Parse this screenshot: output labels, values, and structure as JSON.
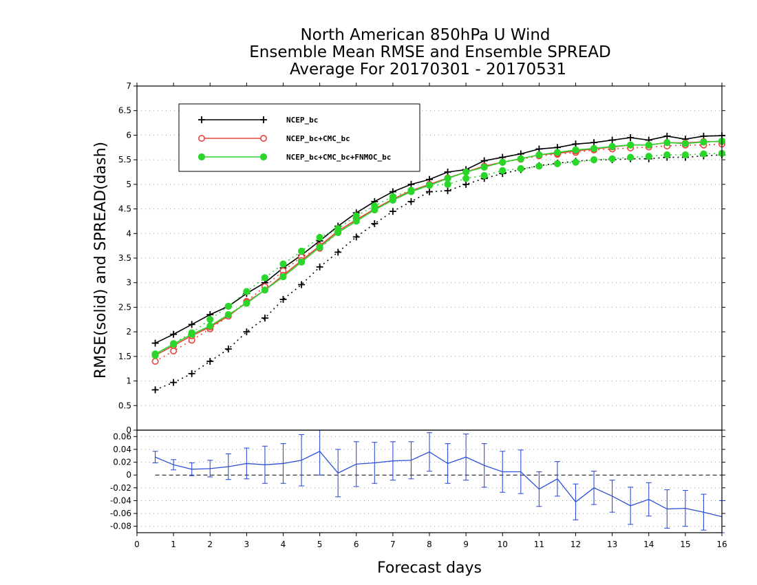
{
  "chart_data": [
    {
      "type": "line",
      "title": [
        "North American 850hPa U Wind",
        "Ensemble Mean RMSE and Ensemble SPREAD",
        "Average For 20170301 - 20170531"
      ],
      "ylabel": "RMSE(solid) and SPREAD(dash)",
      "xlim": [
        0,
        16
      ],
      "ylim": [
        0,
        7
      ],
      "yticks": [
        0,
        0.5,
        1,
        1.5,
        2,
        2.5,
        3,
        3.5,
        4,
        4.5,
        5,
        5.5,
        6,
        6.5,
        7
      ],
      "ytick_labels": [
        "0",
        "0.5",
        "1",
        "1.5",
        "2",
        "2.5",
        "3",
        "3.5",
        "4",
        "4.5",
        "5",
        "5.5",
        "6",
        "6.5",
        "7"
      ],
      "grid": true,
      "legend_position": "top-left",
      "x": [
        0.5,
        1,
        1.5,
        2,
        2.5,
        3,
        3.5,
        4,
        4.5,
        5,
        5.5,
        6,
        6.5,
        7,
        7.5,
        8,
        8.5,
        9,
        9.5,
        10,
        10.5,
        11,
        11.5,
        12,
        12.5,
        13,
        13.5,
        14,
        14.5,
        15,
        15.5,
        16
      ],
      "series": [
        {
          "name": "NCEP_bc",
          "color": "#000000",
          "marker": "plus",
          "rmse": [
            1.77,
            1.95,
            2.15,
            2.35,
            2.52,
            2.78,
            3.0,
            3.3,
            3.56,
            3.85,
            4.15,
            4.42,
            4.65,
            4.85,
            5.0,
            5.1,
            5.25,
            5.3,
            5.48,
            5.55,
            5.62,
            5.72,
            5.75,
            5.82,
            5.85,
            5.9,
            5.95,
            5.9,
            5.98,
            5.92,
            5.98,
            5.99
          ],
          "spread": [
            0.82,
            0.97,
            1.15,
            1.4,
            1.65,
            2.0,
            2.28,
            2.66,
            2.96,
            3.32,
            3.62,
            3.93,
            4.2,
            4.45,
            4.65,
            4.85,
            4.87,
            5.0,
            5.12,
            5.22,
            5.3,
            5.38,
            5.43,
            5.47,
            5.5,
            5.5,
            5.52,
            5.52,
            5.55,
            5.55,
            5.58,
            5.6
          ]
        },
        {
          "name": "NCEP_bc+CMC_bc",
          "color": "#e8423a",
          "marker": "open-circle",
          "rmse": [
            1.52,
            1.72,
            1.92,
            2.1,
            2.32,
            2.6,
            2.85,
            3.15,
            3.45,
            3.75,
            4.05,
            4.28,
            4.5,
            4.7,
            4.87,
            5.0,
            5.13,
            5.25,
            5.37,
            5.45,
            5.52,
            5.6,
            5.63,
            5.68,
            5.72,
            5.76,
            5.8,
            5.8,
            5.85,
            5.84,
            5.87,
            5.87
          ],
          "spread": [
            1.4,
            1.61,
            1.83,
            2.06,
            2.32,
            2.62,
            2.92,
            3.24,
            3.52,
            3.7,
            4.02,
            4.26,
            4.48,
            4.68,
            4.86,
            5.0,
            5.12,
            5.25,
            5.36,
            5.45,
            5.51,
            5.58,
            5.61,
            5.65,
            5.7,
            5.72,
            5.74,
            5.76,
            5.78,
            5.8,
            5.8,
            5.82
          ]
        },
        {
          "name": "NCEP_bc+CMC_bc+FNMOC_bc",
          "color": "#2bd62b",
          "marker": "filled-circle",
          "rmse": [
            1.55,
            1.75,
            1.95,
            2.12,
            2.35,
            2.58,
            2.85,
            3.12,
            3.42,
            3.72,
            4.02,
            4.25,
            4.48,
            4.68,
            4.85,
            4.98,
            5.12,
            5.25,
            5.35,
            5.45,
            5.52,
            5.6,
            5.65,
            5.7,
            5.73,
            5.77,
            5.8,
            5.8,
            5.85,
            5.83,
            5.86,
            5.88
          ],
          "spread": [
            1.52,
            1.76,
            1.98,
            2.25,
            2.52,
            2.82,
            3.1,
            3.38,
            3.64,
            3.92,
            4.1,
            4.36,
            4.56,
            4.75,
            4.88,
            4.98,
            5.0,
            5.12,
            5.18,
            5.28,
            5.32,
            5.37,
            5.42,
            5.45,
            5.5,
            5.52,
            5.55,
            5.57,
            5.6,
            5.6,
            5.62,
            5.63
          ]
        }
      ]
    },
    {
      "type": "line-errorbar",
      "xlabel": "Forecast days",
      "xlim": [
        0,
        16
      ],
      "ylim": [
        -0.09,
        0.07
      ],
      "xticks": [
        0,
        1,
        2,
        3,
        4,
        5,
        6,
        7,
        8,
        9,
        10,
        11,
        12,
        13,
        14,
        15,
        16
      ],
      "xtick_labels": [
        "0",
        "1",
        "2",
        "3",
        "4",
        "5",
        "6",
        "7",
        "8",
        "9",
        "10",
        "11",
        "12",
        "13",
        "14",
        "15",
        "16"
      ],
      "yticks": [
        -0.08,
        -0.06,
        -0.04,
        -0.02,
        0,
        0.02,
        0.04,
        0.06
      ],
      "ytick_labels": [
        "-0.08",
        "-0.06",
        "-0.04",
        "-0.02",
        "0",
        "0.02",
        "0.04",
        "0.06"
      ],
      "grid": true,
      "series": [
        {
          "color": "#3050d8",
          "x": [
            0.5,
            1,
            1.5,
            2,
            2.5,
            3,
            3.5,
            4,
            4.5,
            5,
            5.5,
            6,
            6.5,
            7,
            7.5,
            8,
            8.5,
            9,
            9.5,
            10,
            10.5,
            11,
            11.5,
            12,
            12.5,
            13,
            13.5,
            14,
            14.5,
            15,
            15.5,
            16
          ],
          "values": [
            0.028,
            0.016,
            0.009,
            0.01,
            0.013,
            0.018,
            0.016,
            0.018,
            0.023,
            0.037,
            0.003,
            0.017,
            0.019,
            0.022,
            0.023,
            0.036,
            0.018,
            0.028,
            0.015,
            0.005,
            0.005,
            -0.022,
            -0.006,
            -0.042,
            -0.02,
            -0.033,
            -0.048,
            -0.038,
            -0.053,
            -0.052,
            -0.058,
            -0.065
          ],
          "err": [
            0.009,
            0.008,
            0.01,
            0.013,
            0.02,
            0.024,
            0.029,
            0.031,
            0.04,
            0.037,
            0.037,
            0.035,
            0.032,
            0.03,
            0.029,
            0.03,
            0.031,
            0.036,
            0.034,
            0.032,
            0.034,
            0.027,
            0.027,
            0.028,
            0.026,
            0.025,
            0.029,
            0.026,
            0.03,
            0.028,
            0.028,
            0.025
          ]
        }
      ]
    }
  ]
}
